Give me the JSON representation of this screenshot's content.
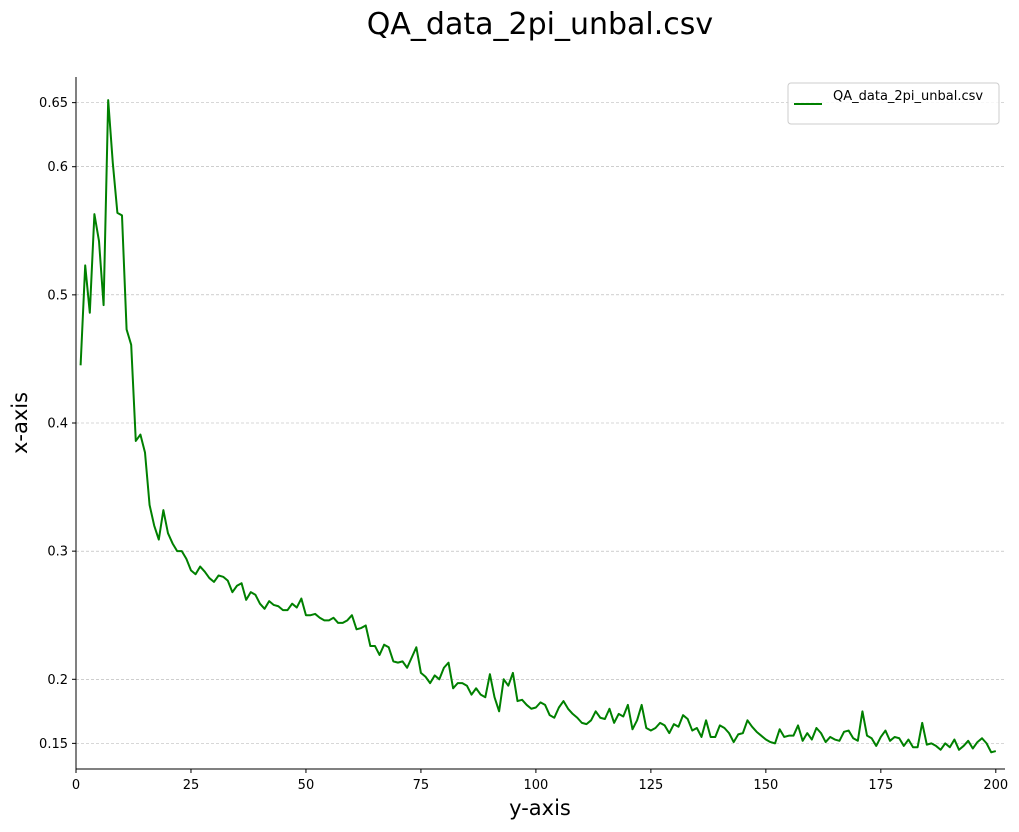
{
  "chart_data": {
    "type": "line",
    "title": "QA_data_2pi_unbal.csv",
    "xlabel": "y-axis",
    "ylabel": "x-axis",
    "xlim": [
      0,
      202
    ],
    "ylim": [
      0.13,
      0.67
    ],
    "xticks": [
      0,
      25,
      50,
      75,
      100,
      125,
      150,
      175,
      200
    ],
    "xtick_labels": [
      "0",
      "25",
      "50",
      "75",
      "100",
      "125",
      "150",
      "175",
      "200"
    ],
    "yticks": [
      0.15,
      0.2,
      0.3,
      0.4,
      0.5,
      0.6,
      0.65
    ],
    "ytick_labels": [
      "0.15",
      "0.2",
      "0.3",
      "0.4",
      "0.5",
      "0.6",
      "0.65"
    ],
    "grid": {
      "y": true,
      "x": false,
      "style": "dashed"
    },
    "legend_position": "top-right",
    "series": [
      {
        "name": "QA_data_2pi_unbal.csv",
        "color": "#008000",
        "x": [
          1,
          2,
          3,
          4,
          5,
          6,
          7,
          8,
          9,
          10,
          11,
          12,
          13,
          14,
          15,
          16,
          17,
          18,
          19,
          20,
          21,
          22,
          23,
          24,
          25,
          26,
          27,
          28,
          29,
          30,
          31,
          32,
          33,
          34,
          35,
          36,
          37,
          38,
          39,
          40,
          41,
          42,
          43,
          44,
          45,
          46,
          47,
          48,
          49,
          50,
          51,
          52,
          53,
          54,
          55,
          56,
          57,
          58,
          59,
          60,
          61,
          62,
          63,
          64,
          65,
          66,
          67,
          68,
          69,
          70,
          71,
          72,
          73,
          74,
          75,
          76,
          77,
          78,
          79,
          80,
          81,
          82,
          83,
          84,
          85,
          86,
          87,
          88,
          89,
          90,
          91,
          92,
          93,
          94,
          95,
          96,
          97,
          98,
          99,
          100,
          101,
          102,
          103,
          104,
          105,
          106,
          107,
          108,
          109,
          110,
          111,
          112,
          113,
          114,
          115,
          116,
          117,
          118,
          119,
          120,
          121,
          122,
          123,
          124,
          125,
          126,
          127,
          128,
          129,
          130,
          131,
          132,
          133,
          134,
          135,
          136,
          137,
          138,
          139,
          140,
          141,
          142,
          143,
          144,
          145,
          146,
          147,
          148,
          149,
          150,
          151,
          152,
          153,
          154,
          155,
          156,
          157,
          158,
          159,
          160,
          161,
          162,
          163,
          164,
          165,
          166,
          167,
          168,
          169,
          170,
          171,
          172,
          173,
          174,
          175,
          176,
          177,
          178,
          179,
          180,
          181,
          182,
          183,
          184,
          185,
          186,
          187,
          188,
          189,
          190,
          191,
          192,
          193,
          194,
          195,
          196,
          197,
          198,
          199,
          200
        ],
        "values": [
          0.445,
          0.523,
          0.486,
          0.563,
          0.542,
          0.492,
          0.652,
          0.603,
          0.564,
          0.562,
          0.473,
          0.461,
          0.386,
          0.391,
          0.377,
          0.336,
          0.32,
          0.309,
          0.332,
          0.314,
          0.306,
          0.3,
          0.3,
          0.294,
          0.285,
          0.282,
          0.288,
          0.284,
          0.279,
          0.276,
          0.281,
          0.28,
          0.277,
          0.268,
          0.273,
          0.275,
          0.262,
          0.268,
          0.266,
          0.259,
          0.255,
          0.261,
          0.258,
          0.257,
          0.254,
          0.254,
          0.259,
          0.256,
          0.263,
          0.25,
          0.25,
          0.251,
          0.248,
          0.246,
          0.246,
          0.248,
          0.244,
          0.244,
          0.246,
          0.25,
          0.239,
          0.24,
          0.242,
          0.226,
          0.226,
          0.219,
          0.227,
          0.225,
          0.214,
          0.213,
          0.214,
          0.209,
          0.217,
          0.225,
          0.205,
          0.202,
          0.197,
          0.203,
          0.2,
          0.209,
          0.213,
          0.193,
          0.197,
          0.197,
          0.195,
          0.188,
          0.193,
          0.188,
          0.186,
          0.204,
          0.186,
          0.175,
          0.2,
          0.195,
          0.205,
          0.183,
          0.184,
          0.18,
          0.177,
          0.178,
          0.182,
          0.18,
          0.172,
          0.17,
          0.178,
          0.183,
          0.177,
          0.173,
          0.17,
          0.166,
          0.165,
          0.168,
          0.175,
          0.17,
          0.169,
          0.177,
          0.166,
          0.173,
          0.171,
          0.18,
          0.161,
          0.168,
          0.18,
          0.162,
          0.16,
          0.162,
          0.166,
          0.164,
          0.158,
          0.165,
          0.163,
          0.172,
          0.169,
          0.16,
          0.162,
          0.155,
          0.168,
          0.155,
          0.155,
          0.164,
          0.162,
          0.158,
          0.151,
          0.157,
          0.158,
          0.168,
          0.163,
          0.159,
          0.156,
          0.153,
          0.151,
          0.15,
          0.161,
          0.155,
          0.156,
          0.156,
          0.164,
          0.152,
          0.158,
          0.153,
          0.162,
          0.158,
          0.151,
          0.155,
          0.153,
          0.152,
          0.159,
          0.16,
          0.154,
          0.152,
          0.175,
          0.156,
          0.154,
          0.148,
          0.155,
          0.16,
          0.152,
          0.155,
          0.154,
          0.148,
          0.153,
          0.147,
          0.147,
          0.166,
          0.149,
          0.15,
          0.148,
          0.145,
          0.15,
          0.147,
          0.153,
          0.145,
          0.148,
          0.152,
          0.146,
          0.151,
          0.154,
          0.15,
          0.143,
          0.144
        ]
      }
    ]
  }
}
